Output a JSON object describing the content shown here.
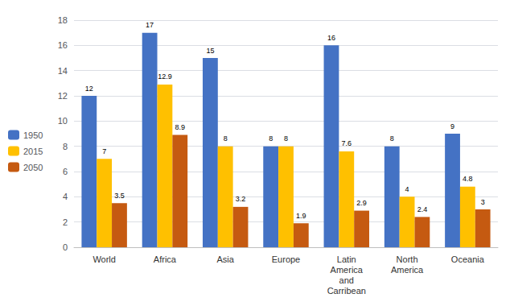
{
  "chart_data": {
    "type": "bar",
    "categories": [
      "World",
      "Africa",
      "Asia",
      "Europe",
      "Latin\nAmerica\nand\nCarribean",
      "North\nAmerica",
      "Oceania"
    ],
    "series": [
      {
        "name": "1950",
        "color": "#4472C4",
        "values": [
          12,
          17,
          15,
          8,
          16,
          8,
          9
        ]
      },
      {
        "name": "2015",
        "color": "#FFC000",
        "values": [
          7,
          12.9,
          8,
          8,
          7.6,
          4,
          4.8
        ]
      },
      {
        "name": "2050",
        "color": "#C55A11",
        "values": [
          3.5,
          8.9,
          3.2,
          1.9,
          2.9,
          2.4,
          3
        ]
      }
    ],
    "ylim": [
      0,
      18
    ],
    "yticks": [
      0,
      2,
      4,
      6,
      8,
      10,
      12,
      14,
      16,
      18
    ],
    "grid": true,
    "legend": "left",
    "data_labels": true
  }
}
